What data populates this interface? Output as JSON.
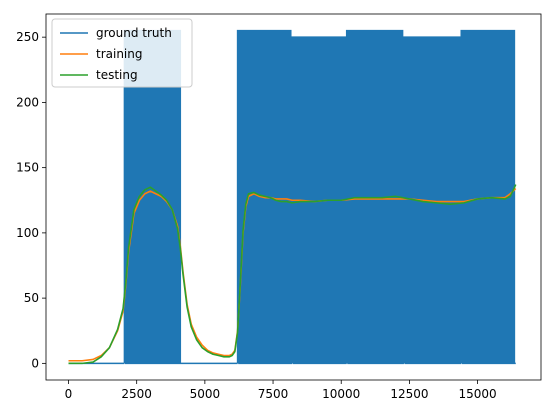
{
  "chart_data": {
    "type": "line",
    "title": "",
    "xlabel": "",
    "ylabel": "",
    "xlim": [
      -825,
      17325
    ],
    "ylim": [
      -12.75,
      267.75
    ],
    "xticks": [
      0,
      2500,
      5000,
      7500,
      10000,
      12500,
      15000
    ],
    "yticks": [
      0,
      50,
      100,
      150,
      200,
      250
    ],
    "grid": false,
    "legend": {
      "placement": "upper-left"
    },
    "series": [
      {
        "name": "ground truth",
        "color": "#1f77b4",
        "style": "square-wave",
        "bursts": [
          {
            "x_start": 2050,
            "x_end": 4150,
            "low": 0,
            "high": 255,
            "period": 100
          },
          {
            "x_start": 6200,
            "x_end": 8200,
            "low": 0,
            "high": 255,
            "period": 100
          },
          {
            "x_start": 8200,
            "x_end": 10200,
            "low": 0,
            "high": 250,
            "period": 100
          },
          {
            "x_start": 10200,
            "x_end": 12300,
            "low": 0,
            "high": 255,
            "period": 100
          },
          {
            "x_start": 12300,
            "x_end": 14400,
            "low": 0,
            "high": 250,
            "period": 100
          },
          {
            "x_start": 14400,
            "x_end": 16400,
            "low": 0,
            "high": 255,
            "period": 100
          }
        ],
        "baseline_segments": [
          {
            "x_start": 0,
            "x_end": 2050,
            "y": 0
          },
          {
            "x_start": 4150,
            "x_end": 6200,
            "y": 0
          }
        ]
      },
      {
        "name": "training",
        "color": "#ff7f0e",
        "x": [
          0,
          500,
          900,
          1200,
          1500,
          1800,
          2000,
          2100,
          2200,
          2400,
          2600,
          2800,
          3000,
          3200,
          3400,
          3600,
          3800,
          4000,
          4100,
          4200,
          4350,
          4500,
          4700,
          4900,
          5100,
          5300,
          5500,
          5700,
          5900,
          6000,
          6100,
          6200,
          6300,
          6400,
          6500,
          6600,
          6800,
          7000,
          7200,
          7400,
          7600,
          7800,
          8000,
          8200,
          8500,
          9000,
          9500,
          10000,
          10500,
          11000,
          11500,
          12000,
          12500,
          13000,
          13500,
          14000,
          14500,
          15000,
          15500,
          16000,
          16200,
          16400
        ],
        "y": [
          2,
          2,
          3,
          6,
          12,
          25,
          40,
          60,
          85,
          115,
          125,
          130,
          132,
          130,
          128,
          124,
          118,
          105,
          90,
          70,
          45,
          30,
          20,
          14,
          10,
          8,
          7,
          6,
          6,
          7,
          10,
          25,
          60,
          100,
          120,
          128,
          130,
          128,
          127,
          127,
          126,
          126,
          126,
          125,
          125,
          124,
          125,
          125,
          126,
          126,
          126,
          126,
          126,
          125,
          124,
          124,
          124,
          126,
          127,
          127,
          130,
          134
        ]
      },
      {
        "name": "testing",
        "color": "#2ca02c",
        "x": [
          0,
          500,
          900,
          1200,
          1500,
          1800,
          2000,
          2100,
          2200,
          2400,
          2600,
          2800,
          3000,
          3200,
          3400,
          3600,
          3800,
          4000,
          4100,
          4200,
          4350,
          4500,
          4700,
          4900,
          5100,
          5300,
          5500,
          5700,
          5900,
          6000,
          6100,
          6200,
          6300,
          6400,
          6500,
          6600,
          6800,
          7000,
          7200,
          7400,
          7600,
          7800,
          8000,
          8200,
          8500,
          9000,
          9500,
          10000,
          10500,
          11000,
          11500,
          12000,
          12500,
          13000,
          13500,
          14000,
          14500,
          15000,
          15500,
          16000,
          16200,
          16400
        ],
        "y": [
          0,
          0,
          1,
          5,
          12,
          26,
          42,
          62,
          88,
          118,
          128,
          133,
          135,
          132,
          129,
          125,
          118,
          103,
          88,
          68,
          43,
          28,
          18,
          12,
          9,
          7,
          6,
          5,
          5,
          6,
          9,
          24,
          62,
          102,
          122,
          130,
          131,
          129,
          128,
          127,
          125,
          124,
          124,
          123,
          124,
          124,
          125,
          125,
          127,
          127,
          127,
          128,
          126,
          124,
          123,
          122,
          123,
          126,
          127,
          126,
          128,
          137
        ]
      }
    ]
  }
}
